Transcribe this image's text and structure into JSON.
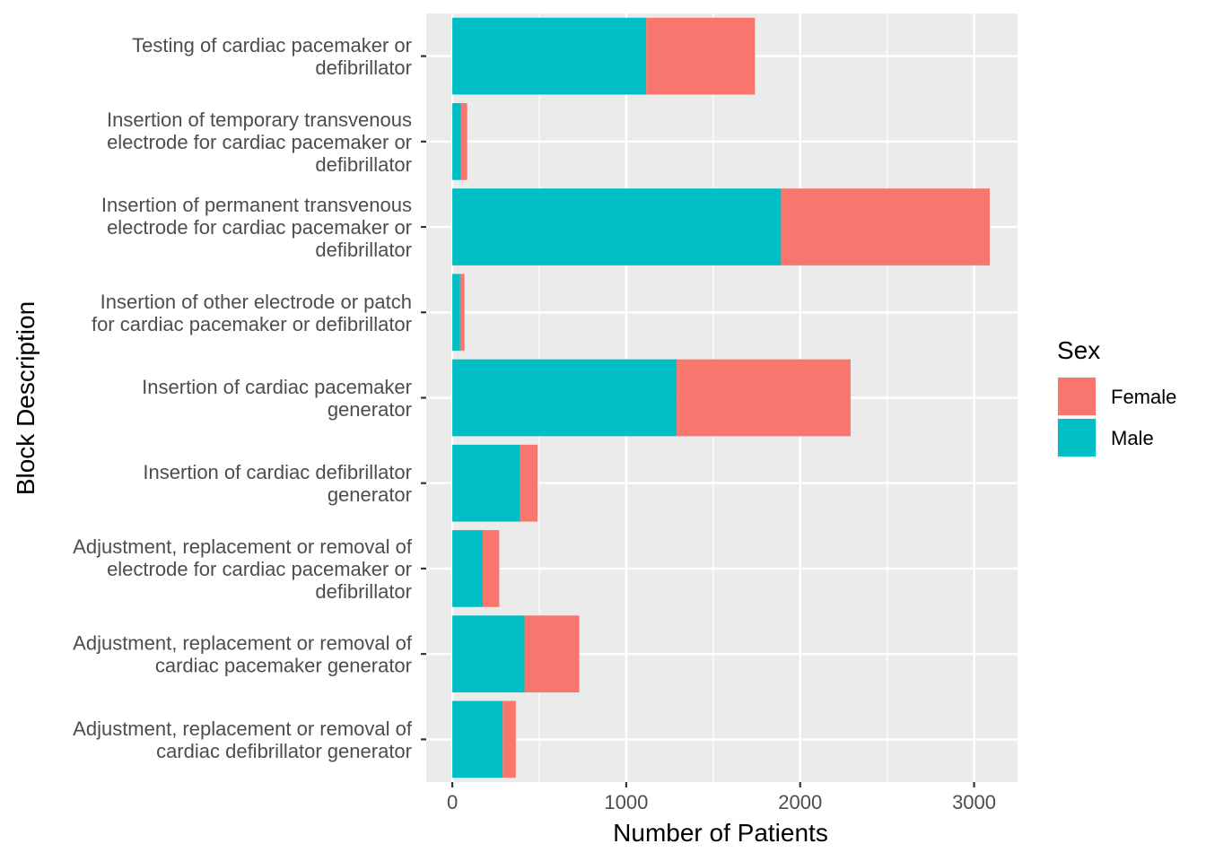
{
  "chart_data": {
    "type": "bar",
    "orientation": "horizontal",
    "stacked": true,
    "xlabel": "Number of Patients",
    "ylabel": "Block Description",
    "xlim": [
      -150,
      3250
    ],
    "x_ticks": [
      0,
      1000,
      2000,
      3000
    ],
    "x_tick_labels": [
      "0",
      "1000",
      "2000",
      "3000"
    ],
    "grid": true,
    "legend": {
      "title": "Sex",
      "position": "right"
    },
    "categories": [
      [
        "Testing of cardiac pacemaker or",
        "defibrillator"
      ],
      [
        "Insertion of temporary transvenous",
        "electrode for cardiac pacemaker or",
        "defibrillator"
      ],
      [
        "Insertion of permanent transvenous",
        "electrode for cardiac pacemaker or",
        "defibrillator"
      ],
      [
        "Insertion of other electrode or patch",
        "for cardiac pacemaker or defibrillator"
      ],
      [
        "Insertion of cardiac pacemaker",
        "generator"
      ],
      [
        "Insertion of cardiac defibrillator",
        "generator"
      ],
      [
        "Adjustment, replacement or removal of",
        "electrode for cardiac pacemaker or",
        "defibrillator"
      ],
      [
        "Adjustment, replacement or removal of",
        "cardiac pacemaker generator"
      ],
      [
        "Adjustment, replacement or removal of",
        "cardiac defibrillator generator"
      ]
    ],
    "series": [
      {
        "name": "Male",
        "color": "#00BFC4",
        "values": [
          1115,
          50,
          1890,
          45,
          1290,
          390,
          175,
          415,
          290
        ]
      },
      {
        "name": "Female",
        "color": "#F8766D",
        "values": [
          625,
          35,
          1200,
          25,
          1000,
          100,
          95,
          315,
          75
        ]
      }
    ],
    "legend_order": [
      "Female",
      "Male"
    ]
  }
}
